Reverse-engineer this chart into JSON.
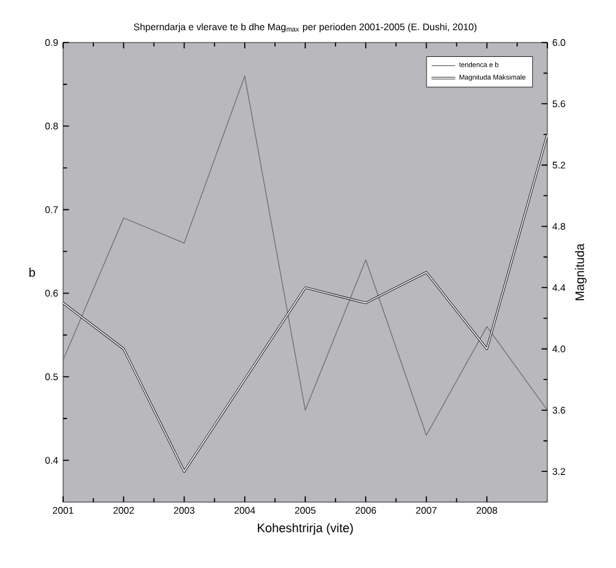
{
  "chart_data": {
    "type": "line",
    "title": "Shperndarja e vlerave te b dhe Mag$_{max}$ per perioden 2001-2005 (E. Dushi, 2010)",
    "xlabel": "Koheshtrirja (vite)",
    "ylabel": "b",
    "y2label": "Magnituda",
    "x": [
      2001,
      2002,
      2003,
      2004,
      2005,
      2006,
      2007,
      2008,
      2009
    ],
    "series": [
      {
        "name": "tendenca e b",
        "color": "#6e6e6e",
        "values": [
          0.52,
          0.69,
          0.66,
          0.86,
          0.46,
          0.64,
          0.43,
          0.56,
          0.46
        ]
      },
      {
        "name": "Magnituda Maksimale",
        "color": "#ffffff",
        "axis": "y2",
        "values": [
          4.3,
          4.0,
          3.2,
          3.8,
          4.4,
          4.3,
          4.5,
          4.0,
          5.4
        ]
      }
    ],
    "xlim": [
      2001,
      2009
    ],
    "xticks": [
      2001,
      2002,
      2003,
      2004,
      2005,
      2006,
      2007,
      2008
    ],
    "ylim": [
      0.35,
      0.9
    ],
    "yticks": [
      0.4,
      0.5,
      0.6,
      0.7,
      0.8,
      0.9
    ],
    "y2lim": [
      3.0,
      6.0
    ],
    "y2ticks": [
      3.2,
      3.6,
      {
        "value": 4,
        "label": "4.0"
      },
      4.4,
      4.8,
      5.2,
      5.6,
      {
        "value": 6,
        "label": "6.0"
      }
    ],
    "legend": "top right",
    "grid": false,
    "line_style": "solid",
    "marker": "none"
  }
}
